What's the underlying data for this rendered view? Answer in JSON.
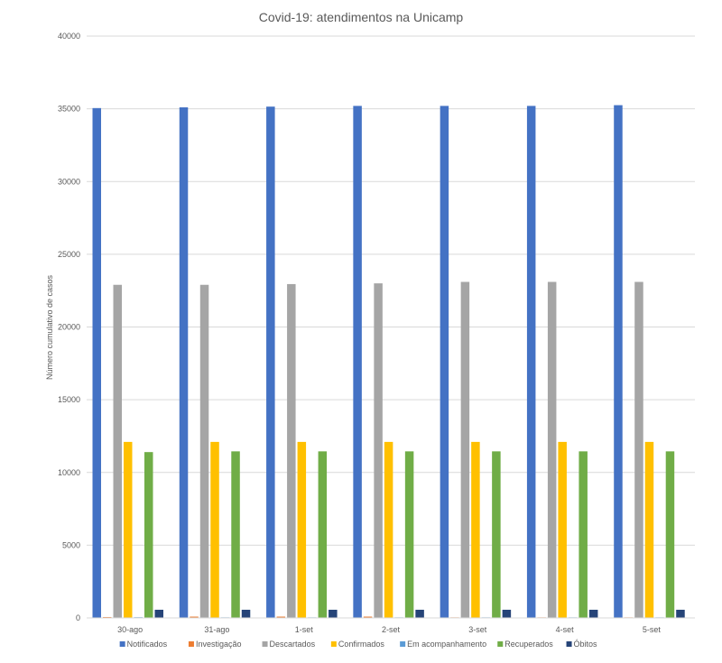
{
  "chart_data": {
    "type": "bar",
    "title": "Covid-19: atendimentos na Unicamp",
    "xlabel": "",
    "ylabel": "Número cumulativo de casos",
    "ylim": [
      0,
      40000
    ],
    "yticks": [
      0,
      5000,
      10000,
      15000,
      20000,
      25000,
      30000,
      35000,
      40000
    ],
    "grid": true,
    "legend_position": "bottom",
    "categories": [
      "30-ago",
      "31-ago",
      "1-set",
      "2-set",
      "3-set",
      "4-set",
      "5-set"
    ],
    "series": [
      {
        "name": "Notificados",
        "color": "#4472C4",
        "values": [
          35050,
          35100,
          35150,
          35200,
          35200,
          35200,
          35250
        ]
      },
      {
        "name": "Investigação",
        "color": "#ED7D31",
        "values": [
          60,
          90,
          90,
          90,
          40,
          40,
          40
        ]
      },
      {
        "name": "Descartados",
        "color": "#A5A5A5",
        "values": [
          22900,
          22900,
          22950,
          23000,
          23100,
          23100,
          23100
        ]
      },
      {
        "name": "Confirmados",
        "color": "#FFC000",
        "values": [
          12100,
          12100,
          12100,
          12100,
          12100,
          12100,
          12100
        ]
      },
      {
        "name": "Em acompanhamento",
        "color": "#5B9BD5",
        "values": [
          50,
          40,
          40,
          40,
          40,
          40,
          40
        ]
      },
      {
        "name": "Recuperados",
        "color": "#70AD47",
        "values": [
          11400,
          11450,
          11450,
          11450,
          11450,
          11450,
          11450
        ]
      },
      {
        "name": "Óbitos",
        "color": "#264478",
        "values": [
          560,
          560,
          560,
          560,
          560,
          560,
          560
        ]
      }
    ]
  }
}
